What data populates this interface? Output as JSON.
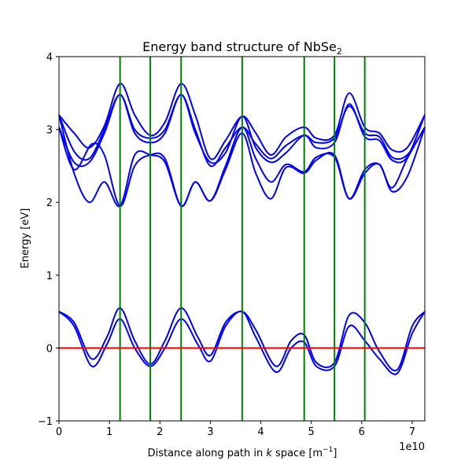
{
  "chart_data": {
    "type": "line",
    "title": "Energy band structure of NbSe",
    "title_sub": "2",
    "xlabel": "Distance along path in ",
    "xlabel_k": "k",
    "xlabel_tail": " space [m",
    "xlabel_sup": "−1",
    "xlabel_end": "]",
    "ylabel": "Energy [eV]",
    "offset_text": "1e10",
    "xlim": [
      0,
      7.25
    ],
    "ylim": [
      -1,
      4
    ],
    "xticks": [
      0,
      1,
      2,
      3,
      4,
      5,
      6,
      7
    ],
    "xtick_labels": [
      "0",
      "1",
      "2",
      "3",
      "4",
      "5",
      "6",
      "7"
    ],
    "yticks": [
      -1,
      0,
      1,
      2,
      3,
      4
    ],
    "ytick_labels": [
      "−1",
      "0",
      "1",
      "2",
      "3",
      "4"
    ],
    "fermi_level": 0,
    "fermi_color": "#ff0000",
    "band_color": "#0000ff",
    "vline_color": "#008000",
    "vlines": [
      1.21,
      1.81,
      2.42,
      3.63,
      4.86,
      5.46,
      6.06
    ],
    "series": [
      {
        "x": [
          0,
          0.3,
          0.6,
          0.9,
          1.21,
          1.5,
          1.81,
          2.1,
          2.42,
          2.7,
          3.0,
          3.3,
          3.63,
          3.9,
          4.2,
          4.5,
          4.86,
          5.1,
          5.46,
          5.75,
          6.06,
          6.35,
          6.6,
          6.9,
          7.25
        ],
        "values": [
          3.2,
          2.95,
          2.75,
          3.05,
          3.63,
          3.2,
          2.92,
          3.1,
          3.63,
          3.2,
          2.6,
          2.85,
          3.18,
          2.95,
          2.65,
          2.9,
          3.03,
          2.88,
          2.92,
          3.5,
          3.03,
          2.95,
          2.72,
          2.75,
          3.2
        ]
      },
      {
        "x": [
          0,
          0.3,
          0.6,
          0.9,
          1.21,
          1.5,
          1.81,
          2.1,
          2.42,
          2.7,
          3.0,
          3.3,
          3.63,
          3.9,
          4.2,
          4.5,
          4.86,
          5.1,
          5.46,
          5.75,
          6.06,
          6.35,
          6.6,
          6.9,
          7.25
        ],
        "values": [
          3.2,
          2.7,
          2.6,
          3.0,
          3.48,
          3.0,
          2.88,
          3.0,
          3.48,
          3.0,
          2.5,
          2.75,
          3.03,
          2.8,
          2.6,
          2.78,
          2.92,
          2.82,
          2.88,
          3.32,
          2.95,
          2.9,
          2.62,
          2.65,
          3.03
        ]
      },
      {
        "x": [
          0,
          0.3,
          0.6,
          0.9,
          1.21,
          1.5,
          1.81,
          2.1,
          2.42,
          2.7,
          3.0,
          3.3,
          3.63,
          3.9,
          4.2,
          4.5,
          4.86,
          5.1,
          5.46,
          5.75,
          6.06,
          6.35,
          6.6,
          6.9,
          7.25
        ],
        "values": [
          3.03,
          2.55,
          2.55,
          2.95,
          3.48,
          2.95,
          2.82,
          2.95,
          3.48,
          2.95,
          2.55,
          2.68,
          3.18,
          2.75,
          2.55,
          2.68,
          2.92,
          2.75,
          2.82,
          3.35,
          2.9,
          2.85,
          2.58,
          2.62,
          3.2
        ]
      },
      {
        "x": [
          0,
          0.3,
          0.65,
          0.9,
          1.21,
          1.5,
          1.81,
          2.1,
          2.42,
          2.7,
          3.0,
          3.3,
          3.63,
          3.9,
          4.2,
          4.5,
          4.86,
          5.1,
          5.46,
          5.75,
          6.06,
          6.35,
          6.6,
          6.9,
          7.25
        ],
        "values": [
          3.03,
          2.45,
          2.8,
          2.65,
          1.95,
          2.5,
          2.65,
          2.6,
          1.95,
          2.28,
          2.02,
          2.5,
          3.03,
          2.6,
          2.28,
          2.52,
          2.42,
          2.62,
          2.62,
          2.05,
          2.45,
          2.52,
          2.2,
          2.6,
          3.03
        ]
      },
      {
        "x": [
          0,
          0.3,
          0.6,
          0.9,
          1.21,
          1.5,
          1.81,
          2.1,
          2.42,
          2.7,
          3.0,
          3.3,
          3.63,
          3.9,
          4.2,
          4.5,
          4.86,
          5.1,
          5.46,
          5.75,
          6.06,
          6.35,
          6.6,
          6.9,
          7.25
        ],
        "values": [
          3.2,
          2.4,
          2.0,
          2.28,
          1.95,
          2.65,
          2.65,
          2.55,
          1.95,
          2.28,
          2.02,
          2.45,
          2.95,
          2.4,
          2.05,
          2.48,
          2.4,
          2.58,
          2.65,
          2.05,
          2.4,
          2.52,
          2.15,
          2.35,
          3.03
        ]
      },
      {
        "x": [
          0,
          0.3,
          0.65,
          0.95,
          1.21,
          1.5,
          1.81,
          2.1,
          2.42,
          2.75,
          3.0,
          3.3,
          3.63,
          3.9,
          4.3,
          4.6,
          4.86,
          5.1,
          5.46,
          5.75,
          6.06,
          6.35,
          6.7,
          7.0,
          7.25
        ],
        "values": [
          0.5,
          0.35,
          -0.15,
          0.15,
          0.55,
          0.1,
          -0.22,
          0.1,
          0.55,
          0.15,
          -0.1,
          0.35,
          0.5,
          0.25,
          -0.25,
          0.1,
          0.18,
          -0.2,
          -0.2,
          0.45,
          0.35,
          -0.05,
          -0.3,
          0.3,
          0.5
        ]
      },
      {
        "x": [
          0,
          0.3,
          0.65,
          0.95,
          1.21,
          1.5,
          1.81,
          2.1,
          2.42,
          2.75,
          3.0,
          3.3,
          3.63,
          3.9,
          4.3,
          4.6,
          4.86,
          5.1,
          5.46,
          5.75,
          6.06,
          6.35,
          6.7,
          7.0,
          7.25
        ],
        "values": [
          0.5,
          0.3,
          -0.25,
          0.05,
          0.4,
          0.0,
          -0.25,
          0.0,
          0.4,
          0.05,
          -0.18,
          0.3,
          0.5,
          0.15,
          -0.33,
          0.0,
          0.08,
          -0.25,
          -0.25,
          0.3,
          0.1,
          -0.15,
          -0.35,
          0.2,
          0.5
        ]
      }
    ]
  }
}
